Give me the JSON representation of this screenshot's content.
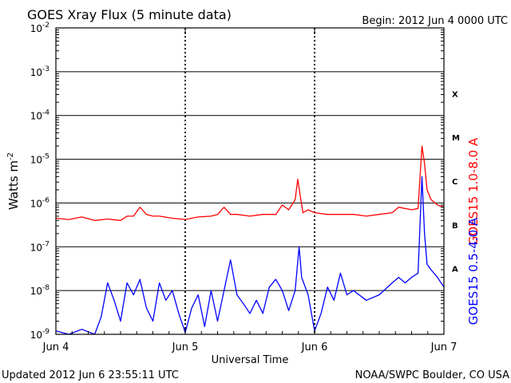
{
  "chart_data": {
    "type": "line",
    "title": "GOES Xray Flux (5 minute data)",
    "begin": "Begin:  2012 Jun 4 0000 UTC",
    "ylabel_base": "Watts m",
    "ylabel_exp": "-2",
    "xlabel": "Universal Time",
    "y_scale": "log",
    "ylim": [
      1e-09,
      0.01
    ],
    "xlim": [
      0,
      3
    ],
    "x_tick_labels": [
      "Jun 4",
      "Jun 5",
      "Jun 6",
      "Jun 7"
    ],
    "y_tick_exponents": [
      "-9",
      "-8",
      "-7",
      "-6",
      "-5",
      "-4",
      "-3",
      "-2"
    ],
    "flare_classes": [
      {
        "label": "A",
        "log_lo": -8,
        "log_hi": -7
      },
      {
        "label": "B",
        "log_lo": -7,
        "log_hi": -6
      },
      {
        "label": "C",
        "log_lo": -6,
        "log_hi": -5
      },
      {
        "label": "M",
        "log_lo": -5,
        "log_hi": -4
      },
      {
        "label": "X",
        "log_lo": -4,
        "log_hi": -3
      }
    ],
    "series": [
      {
        "name": "GOES15 1.0-8.0 A",
        "color": "#ff0000",
        "x": [
          0.0,
          0.1,
          0.2,
          0.3,
          0.4,
          0.5,
          0.55,
          0.6,
          0.65,
          0.7,
          0.75,
          0.8,
          0.9,
          1.0,
          1.1,
          1.2,
          1.25,
          1.3,
          1.35,
          1.4,
          1.5,
          1.6,
          1.7,
          1.75,
          1.8,
          1.85,
          1.87,
          1.89,
          1.91,
          1.95,
          2.0,
          2.1,
          2.2,
          2.3,
          2.4,
          2.5,
          2.6,
          2.65,
          2.7,
          2.75,
          2.8,
          2.83,
          2.85,
          2.87,
          2.9,
          2.95,
          3.0
        ],
        "y": [
          4.5e-07,
          4.2e-07,
          4.8e-07,
          4e-07,
          4.3e-07,
          4e-07,
          5e-07,
          5e-07,
          8e-07,
          5.5e-07,
          5e-07,
          5e-07,
          4.5e-07,
          4.2e-07,
          4.8e-07,
          5e-07,
          5.5e-07,
          8e-07,
          5.5e-07,
          5.5e-07,
          5e-07,
          5.5e-07,
          5.5e-07,
          9e-07,
          7e-07,
          1.2e-06,
          3.5e-06,
          1.4e-06,
          6e-07,
          7e-07,
          6e-07,
          5.5e-07,
          5.5e-07,
          5.5e-07,
          5e-07,
          5.5e-07,
          6e-07,
          8e-07,
          7.5e-07,
          7e-07,
          7.5e-07,
          2e-05,
          8e-06,
          2e-06,
          1.2e-06,
          9e-07,
          8e-07
        ]
      },
      {
        "name": "GOES15 0.5-4.0 A",
        "color": "#0000ff",
        "x": [
          0.0,
          0.1,
          0.2,
          0.3,
          0.35,
          0.4,
          0.45,
          0.5,
          0.55,
          0.6,
          0.65,
          0.7,
          0.75,
          0.8,
          0.85,
          0.9,
          0.95,
          1.0,
          1.05,
          1.1,
          1.15,
          1.2,
          1.25,
          1.3,
          1.35,
          1.4,
          1.45,
          1.5,
          1.55,
          1.6,
          1.65,
          1.7,
          1.75,
          1.8,
          1.85,
          1.88,
          1.9,
          1.95,
          2.0,
          2.05,
          2.1,
          2.15,
          2.2,
          2.25,
          2.3,
          2.4,
          2.5,
          2.6,
          2.65,
          2.7,
          2.75,
          2.8,
          2.83,
          2.85,
          2.87,
          2.9,
          2.95,
          3.0
        ],
        "y": [
          1.2e-09,
          1e-09,
          1.3e-09,
          1e-09,
          2.5e-09,
          1.5e-08,
          6e-09,
          2e-09,
          1.5e-08,
          8e-09,
          1.8e-08,
          4e-09,
          2e-09,
          1.5e-08,
          6e-09,
          1e-08,
          3e-09,
          1.1e-09,
          4e-09,
          8e-09,
          1.5e-09,
          1e-08,
          2e-09,
          1e-08,
          5e-08,
          8e-09,
          5e-09,
          3e-09,
          6e-09,
          3e-09,
          1.2e-08,
          1.8e-08,
          1e-08,
          3.5e-09,
          1e-08,
          1e-07,
          2e-08,
          8e-09,
          1.2e-09,
          3e-09,
          1.2e-08,
          6e-09,
          2.5e-08,
          8e-09,
          1e-08,
          6e-09,
          8e-09,
          1.5e-08,
          2e-08,
          1.5e-08,
          2e-08,
          2.5e-08,
          4e-06,
          2e-07,
          4e-08,
          3e-08,
          2e-08,
          1.2e-08
        ]
      }
    ]
  },
  "footer": {
    "updated": "Updated 2012 Jun  6 23:55:11 UTC",
    "credit": "NOAA/SWPC Boulder, CO USA"
  }
}
